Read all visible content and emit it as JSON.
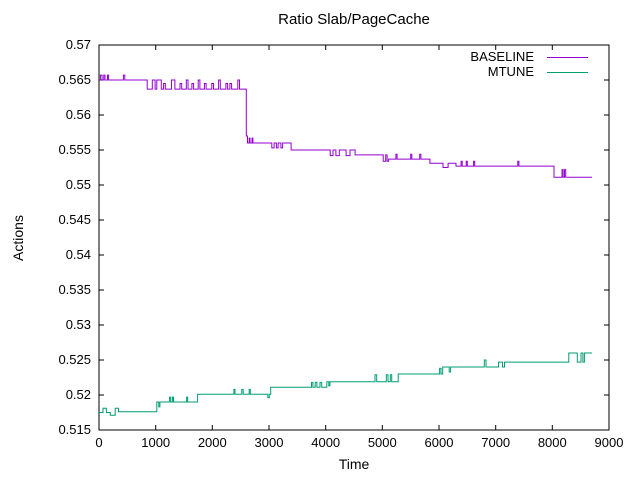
{
  "chart_data": {
    "type": "line",
    "title": "Ratio Slab/PageCache",
    "xlabel": "Time",
    "ylabel": "Actions",
    "xlim": [
      0,
      9000
    ],
    "ylim": [
      0.515,
      0.57
    ],
    "grid": false,
    "legend_position": "top-right-inside",
    "border": true,
    "tick_style": "inward-mirrored",
    "xticks": [
      {
        "v": 0,
        "label": "0"
      },
      {
        "v": 1000,
        "label": "1000"
      },
      {
        "v": 2000,
        "label": "2000"
      },
      {
        "v": 3000,
        "label": "3000"
      },
      {
        "v": 4000,
        "label": "4000"
      },
      {
        "v": 5000,
        "label": "5000"
      },
      {
        "v": 6000,
        "label": "6000"
      },
      {
        "v": 7000,
        "label": "7000"
      },
      {
        "v": 8000,
        "label": "8000"
      },
      {
        "v": 9000,
        "label": "9000"
      }
    ],
    "yticks": [
      {
        "v": 0.515,
        "label": "0.515"
      },
      {
        "v": 0.52,
        "label": "0.52"
      },
      {
        "v": 0.525,
        "label": "0.525"
      },
      {
        "v": 0.53,
        "label": "0.53"
      },
      {
        "v": 0.535,
        "label": "0.535"
      },
      {
        "v": 0.54,
        "label": "0.54"
      },
      {
        "v": 0.545,
        "label": "0.545"
      },
      {
        "v": 0.55,
        "label": "0.55"
      },
      {
        "v": 0.555,
        "label": "0.555"
      },
      {
        "v": 0.56,
        "label": "0.56"
      },
      {
        "v": 0.565,
        "label": "0.565"
      },
      {
        "v": 0.57,
        "label": "0.57"
      }
    ],
    "series": [
      {
        "name": "BASELINE",
        "color": "#9400d3",
        "points": [
          [
            0,
            0.565
          ],
          [
            25,
            0.565
          ],
          [
            25,
            0.5657
          ],
          [
            55,
            0.5657
          ],
          [
            55,
            0.565
          ],
          [
            85,
            0.565
          ],
          [
            85,
            0.5657
          ],
          [
            105,
            0.5657
          ],
          [
            105,
            0.565
          ],
          [
            150,
            0.565
          ],
          [
            150,
            0.5657
          ],
          [
            170,
            0.5657
          ],
          [
            170,
            0.565
          ],
          [
            430,
            0.565
          ],
          [
            430,
            0.5657
          ],
          [
            455,
            0.5657
          ],
          [
            455,
            0.565
          ],
          [
            850,
            0.565
          ],
          [
            850,
            0.5637
          ],
          [
            940,
            0.5637
          ],
          [
            940,
            0.565
          ],
          [
            990,
            0.565
          ],
          [
            990,
            0.5637
          ],
          [
            1020,
            0.5637
          ],
          [
            1020,
            0.565
          ],
          [
            1100,
            0.565
          ],
          [
            1100,
            0.5637
          ],
          [
            1140,
            0.5637
          ],
          [
            1140,
            0.5645
          ],
          [
            1170,
            0.5645
          ],
          [
            1170,
            0.5637
          ],
          [
            1280,
            0.5637
          ],
          [
            1280,
            0.565
          ],
          [
            1340,
            0.565
          ],
          [
            1340,
            0.5637
          ],
          [
            1430,
            0.5637
          ],
          [
            1430,
            0.5645
          ],
          [
            1460,
            0.5645
          ],
          [
            1460,
            0.5637
          ],
          [
            1540,
            0.5637
          ],
          [
            1540,
            0.565
          ],
          [
            1570,
            0.565
          ],
          [
            1570,
            0.5637
          ],
          [
            1640,
            0.5637
          ],
          [
            1640,
            0.5645
          ],
          [
            1670,
            0.5645
          ],
          [
            1670,
            0.5637
          ],
          [
            1750,
            0.5637
          ],
          [
            1750,
            0.565
          ],
          [
            1780,
            0.565
          ],
          [
            1780,
            0.5637
          ],
          [
            1860,
            0.5637
          ],
          [
            1860,
            0.5645
          ],
          [
            1890,
            0.5645
          ],
          [
            1890,
            0.5637
          ],
          [
            1990,
            0.5637
          ],
          [
            1990,
            0.5645
          ],
          [
            2020,
            0.5645
          ],
          [
            2020,
            0.5637
          ],
          [
            2110,
            0.5637
          ],
          [
            2110,
            0.565
          ],
          [
            2140,
            0.565
          ],
          [
            2140,
            0.5637
          ],
          [
            2240,
            0.5637
          ],
          [
            2240,
            0.5645
          ],
          [
            2270,
            0.5645
          ],
          [
            2270,
            0.5637
          ],
          [
            2310,
            0.5637
          ],
          [
            2310,
            0.5645
          ],
          [
            2340,
            0.5645
          ],
          [
            2340,
            0.5637
          ],
          [
            2450,
            0.5637
          ],
          [
            2450,
            0.565
          ],
          [
            2480,
            0.565
          ],
          [
            2480,
            0.5637
          ],
          [
            2600,
            0.5637
          ],
          [
            2600,
            0.557
          ],
          [
            2620,
            0.557
          ],
          [
            2620,
            0.556
          ],
          [
            2650,
            0.556
          ],
          [
            2650,
            0.5567
          ],
          [
            2665,
            0.5567
          ],
          [
            2665,
            0.556
          ],
          [
            2700,
            0.556
          ],
          [
            2700,
            0.5567
          ],
          [
            2715,
            0.5567
          ],
          [
            2715,
            0.556
          ],
          [
            3050,
            0.556
          ],
          [
            3050,
            0.5553
          ],
          [
            3090,
            0.5553
          ],
          [
            3090,
            0.556
          ],
          [
            3130,
            0.556
          ],
          [
            3130,
            0.5553
          ],
          [
            3160,
            0.5553
          ],
          [
            3160,
            0.556
          ],
          [
            3210,
            0.556
          ],
          [
            3210,
            0.5553
          ],
          [
            3240,
            0.5553
          ],
          [
            3240,
            0.556
          ],
          [
            3390,
            0.556
          ],
          [
            3390,
            0.555
          ],
          [
            4080,
            0.555
          ],
          [
            4080,
            0.5542
          ],
          [
            4130,
            0.5542
          ],
          [
            4130,
            0.555
          ],
          [
            4180,
            0.555
          ],
          [
            4180,
            0.5542
          ],
          [
            4240,
            0.5542
          ],
          [
            4240,
            0.555
          ],
          [
            4360,
            0.555
          ],
          [
            4360,
            0.5542
          ],
          [
            4430,
            0.5542
          ],
          [
            4430,
            0.555
          ],
          [
            4520,
            0.555
          ],
          [
            4520,
            0.5543
          ],
          [
            5015,
            0.5543
          ],
          [
            5015,
            0.5534
          ],
          [
            5060,
            0.5534
          ],
          [
            5060,
            0.5543
          ],
          [
            5085,
            0.5543
          ],
          [
            5085,
            0.5534
          ],
          [
            5110,
            0.5534
          ],
          [
            5110,
            0.5537
          ],
          [
            5240,
            0.5537
          ],
          [
            5240,
            0.5544
          ],
          [
            5260,
            0.5544
          ],
          [
            5260,
            0.5537
          ],
          [
            5500,
            0.5537
          ],
          [
            5500,
            0.5544
          ],
          [
            5520,
            0.5544
          ],
          [
            5520,
            0.5537
          ],
          [
            5660,
            0.5537
          ],
          [
            5660,
            0.5544
          ],
          [
            5680,
            0.5544
          ],
          [
            5680,
            0.5537
          ],
          [
            5840,
            0.5537
          ],
          [
            5840,
            0.5531
          ],
          [
            6070,
            0.5531
          ],
          [
            6070,
            0.5525
          ],
          [
            6160,
            0.5525
          ],
          [
            6160,
            0.5531
          ],
          [
            6300,
            0.5531
          ],
          [
            6300,
            0.5527
          ],
          [
            6390,
            0.5527
          ],
          [
            6390,
            0.5534
          ],
          [
            6410,
            0.5534
          ],
          [
            6410,
            0.5527
          ],
          [
            6480,
            0.5527
          ],
          [
            6480,
            0.5534
          ],
          [
            6500,
            0.5534
          ],
          [
            6500,
            0.5527
          ],
          [
            6610,
            0.5527
          ],
          [
            6610,
            0.5534
          ],
          [
            6630,
            0.5534
          ],
          [
            6630,
            0.5527
          ],
          [
            7390,
            0.5527
          ],
          [
            7390,
            0.5534
          ],
          [
            7410,
            0.5534
          ],
          [
            7410,
            0.5527
          ],
          [
            8030,
            0.5527
          ],
          [
            8030,
            0.5511
          ],
          [
            8170,
            0.5511
          ],
          [
            8170,
            0.5522
          ],
          [
            8190,
            0.5522
          ],
          [
            8190,
            0.5511
          ],
          [
            8215,
            0.5511
          ],
          [
            8215,
            0.5522
          ],
          [
            8235,
            0.5522
          ],
          [
            8235,
            0.5511
          ],
          [
            8700,
            0.5511
          ]
        ]
      },
      {
        "name": "MTUNE",
        "color": "#009e73",
        "points": [
          [
            0,
            0.5175
          ],
          [
            70,
            0.5175
          ],
          [
            70,
            0.5181
          ],
          [
            130,
            0.5181
          ],
          [
            130,
            0.5175
          ],
          [
            200,
            0.5175
          ],
          [
            200,
            0.5171
          ],
          [
            285,
            0.5171
          ],
          [
            285,
            0.5181
          ],
          [
            345,
            0.5181
          ],
          [
            345,
            0.5176
          ],
          [
            1020,
            0.5176
          ],
          [
            1020,
            0.519
          ],
          [
            1055,
            0.519
          ],
          [
            1055,
            0.5183
          ],
          [
            1075,
            0.5183
          ],
          [
            1075,
            0.519
          ],
          [
            1245,
            0.519
          ],
          [
            1245,
            0.5197
          ],
          [
            1265,
            0.5197
          ],
          [
            1265,
            0.519
          ],
          [
            1295,
            0.519
          ],
          [
            1295,
            0.5197
          ],
          [
            1315,
            0.5197
          ],
          [
            1315,
            0.519
          ],
          [
            1545,
            0.519
          ],
          [
            1545,
            0.5197
          ],
          [
            1565,
            0.5197
          ],
          [
            1565,
            0.519
          ],
          [
            1740,
            0.519
          ],
          [
            1740,
            0.5201
          ],
          [
            2380,
            0.5201
          ],
          [
            2380,
            0.5208
          ],
          [
            2400,
            0.5208
          ],
          [
            2400,
            0.5201
          ],
          [
            2520,
            0.5201
          ],
          [
            2520,
            0.5208
          ],
          [
            2545,
            0.5208
          ],
          [
            2545,
            0.5201
          ],
          [
            2650,
            0.5201
          ],
          [
            2650,
            0.5208
          ],
          [
            2670,
            0.5208
          ],
          [
            2670,
            0.5201
          ],
          [
            2980,
            0.5201
          ],
          [
            2980,
            0.5196
          ],
          [
            3005,
            0.5196
          ],
          [
            3005,
            0.5201
          ],
          [
            3030,
            0.5201
          ],
          [
            3030,
            0.5211
          ],
          [
            3750,
            0.5211
          ],
          [
            3750,
            0.5218
          ],
          [
            3775,
            0.5218
          ],
          [
            3775,
            0.5211
          ],
          [
            3815,
            0.5211
          ],
          [
            3815,
            0.5218
          ],
          [
            3845,
            0.5218
          ],
          [
            3845,
            0.5211
          ],
          [
            3900,
            0.5211
          ],
          [
            3900,
            0.5218
          ],
          [
            3930,
            0.5218
          ],
          [
            3930,
            0.5211
          ],
          [
            4020,
            0.5211
          ],
          [
            4020,
            0.5219
          ],
          [
            4055,
            0.5219
          ],
          [
            4055,
            0.5213
          ],
          [
            4075,
            0.5213
          ],
          [
            4075,
            0.5219
          ],
          [
            4870,
            0.5219
          ],
          [
            4870,
            0.5229
          ],
          [
            4900,
            0.5229
          ],
          [
            4900,
            0.5219
          ],
          [
            5070,
            0.5219
          ],
          [
            5070,
            0.5229
          ],
          [
            5100,
            0.5229
          ],
          [
            5100,
            0.5219
          ],
          [
            5140,
            0.5219
          ],
          [
            5140,
            0.5229
          ],
          [
            5165,
            0.5229
          ],
          [
            5165,
            0.5219
          ],
          [
            5280,
            0.5219
          ],
          [
            5280,
            0.523
          ],
          [
            6010,
            0.523
          ],
          [
            6010,
            0.5238
          ],
          [
            6035,
            0.5238
          ],
          [
            6035,
            0.523
          ],
          [
            6065,
            0.523
          ],
          [
            6065,
            0.524
          ],
          [
            6180,
            0.524
          ],
          [
            6180,
            0.5233
          ],
          [
            6205,
            0.5233
          ],
          [
            6205,
            0.524
          ],
          [
            6800,
            0.524
          ],
          [
            6800,
            0.525
          ],
          [
            6830,
            0.525
          ],
          [
            6830,
            0.524
          ],
          [
            7050,
            0.524
          ],
          [
            7050,
            0.5247
          ],
          [
            7120,
            0.5247
          ],
          [
            7120,
            0.524
          ],
          [
            7155,
            0.524
          ],
          [
            7155,
            0.5247
          ],
          [
            8290,
            0.5247
          ],
          [
            8290,
            0.526
          ],
          [
            8440,
            0.526
          ],
          [
            8440,
            0.5247
          ],
          [
            8505,
            0.5247
          ],
          [
            8505,
            0.526
          ],
          [
            8540,
            0.526
          ],
          [
            8540,
            0.5247
          ],
          [
            8565,
            0.5247
          ],
          [
            8565,
            0.526
          ],
          [
            8700,
            0.526
          ]
        ]
      }
    ]
  }
}
